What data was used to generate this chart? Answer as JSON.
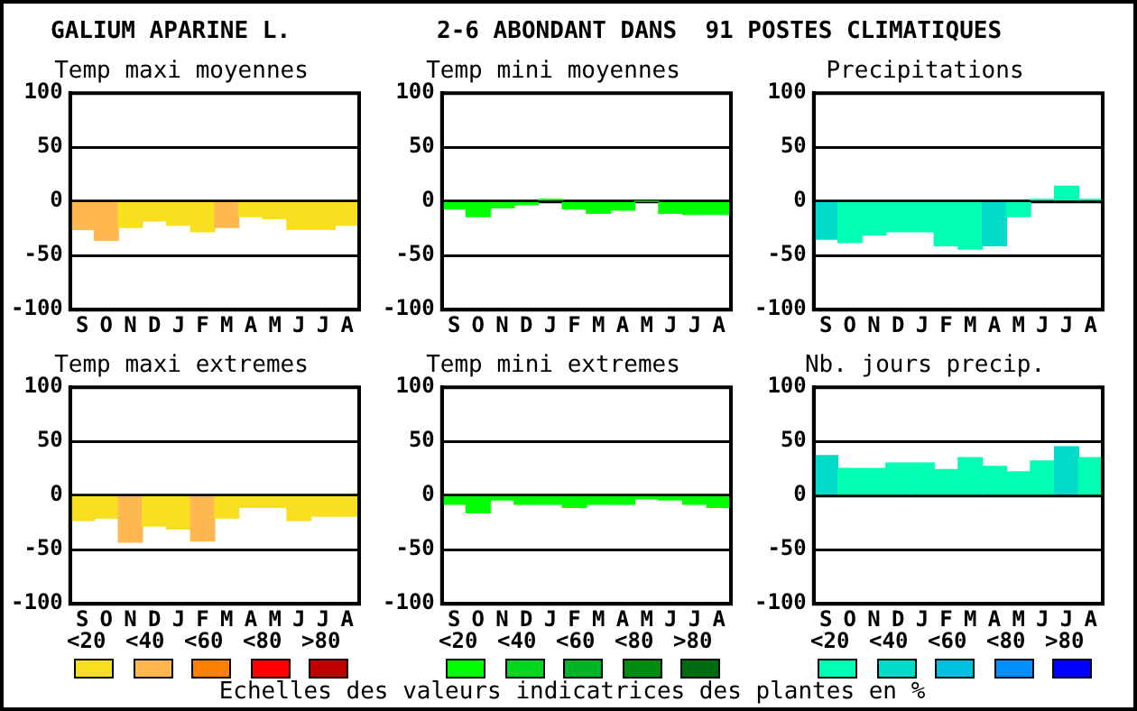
{
  "chart_data": [
    {
      "type": "other",
      "title": "GALIUM APARINE L.",
      "subtitle": "2-6 ABONDANT DANS  91 POSTES CLIMATIQUES"
    },
    {
      "type": "bar",
      "title": "Temp maxi moyennes",
      "categories": [
        "S",
        "O",
        "N",
        "D",
        "J",
        "F",
        "M",
        "A",
        "M",
        "J",
        "J",
        "A"
      ],
      "values": [
        -26,
        -36,
        -24,
        -18,
        -22,
        -28,
        -24,
        -14,
        -16,
        -26,
        -26,
        -22
      ],
      "colors": [
        "#ffb850",
        "#ffb850",
        "#f8e020",
        "#f8e020",
        "#f8e020",
        "#f8e020",
        "#ffb850",
        "#f8e020",
        "#f8e020",
        "#f8e020",
        "#f8e020",
        "#f8e020"
      ],
      "ylim": [
        -100,
        100
      ],
      "yticks": [
        -100,
        -50,
        0,
        50,
        100
      ],
      "grid": "y"
    },
    {
      "type": "bar",
      "title": "Temp mini moyennes",
      "categories": [
        "S",
        "O",
        "N",
        "D",
        "J",
        "F",
        "M",
        "A",
        "M",
        "J",
        "J",
        "A"
      ],
      "values": [
        -7,
        -14,
        -6,
        -3,
        2,
        -7,
        -11,
        -8,
        0,
        -11,
        -12,
        -12
      ],
      "colors": [
        "#00ff00",
        "#00ff00",
        "#00ff00",
        "#00ff00",
        "#00ff00",
        "#00ff00",
        "#00ff00",
        "#00ff00",
        "#00ff00",
        "#00ff00",
        "#00ff00",
        "#00ff00"
      ],
      "ylim": [
        -100,
        100
      ],
      "yticks": [
        -100,
        -50,
        0,
        50,
        100
      ],
      "grid": "y"
    },
    {
      "type": "bar",
      "title": "Precipitations",
      "categories": [
        "S",
        "O",
        "N",
        "D",
        "J",
        "F",
        "M",
        "A",
        "M",
        "J",
        "J",
        "A"
      ],
      "values": [
        -35,
        -38,
        -31,
        -28,
        -28,
        -41,
        -44,
        -41,
        -14,
        2,
        14,
        2
      ],
      "colors": [
        "#00dcc8",
        "#00ffb4",
        "#00ffb4",
        "#00ffb4",
        "#00ffb4",
        "#00ffb4",
        "#00ffb4",
        "#00dcc8",
        "#00ffb4",
        "#00ffb4",
        "#00ffb4",
        "#00ffb4"
      ],
      "ylim": [
        -100,
        100
      ],
      "yticks": [
        -100,
        -50,
        0,
        50,
        100
      ],
      "grid": "y"
    },
    {
      "type": "bar",
      "title": "Temp maxi extremes",
      "categories": [
        "S",
        "O",
        "N",
        "D",
        "J",
        "F",
        "M",
        "A",
        "M",
        "J",
        "J",
        "A"
      ],
      "values": [
        -23,
        -21,
        -43,
        -28,
        -31,
        -42,
        -21,
        -11,
        -11,
        -23,
        -19,
        -19
      ],
      "colors": [
        "#f8e020",
        "#f8e020",
        "#ffb850",
        "#f8e020",
        "#f8e020",
        "#ffb850",
        "#f8e020",
        "#f8e020",
        "#f8e020",
        "#f8e020",
        "#f8e020",
        "#f8e020"
      ],
      "ylim": [
        -100,
        100
      ],
      "yticks": [
        -100,
        -50,
        0,
        50,
        100
      ],
      "grid": "y"
    },
    {
      "type": "bar",
      "title": "Temp mini extremes",
      "categories": [
        "S",
        "O",
        "N",
        "D",
        "J",
        "F",
        "M",
        "A",
        "M",
        "J",
        "J",
        "A"
      ],
      "values": [
        -8,
        -16,
        -4,
        -8,
        -8,
        -11,
        -8,
        -8,
        -3,
        -4,
        -8,
        -11
      ],
      "colors": [
        "#00ff00",
        "#00ff00",
        "#00ff00",
        "#00ff00",
        "#00ff00",
        "#00ff00",
        "#00ff00",
        "#00ff00",
        "#00ff00",
        "#00ff00",
        "#00ff00",
        "#00ff00"
      ],
      "ylim": [
        -100,
        100
      ],
      "yticks": [
        -100,
        -50,
        0,
        50,
        100
      ],
      "grid": "y"
    },
    {
      "type": "bar",
      "title": "Nb. jours precip.",
      "categories": [
        "S",
        "O",
        "N",
        "D",
        "J",
        "F",
        "M",
        "A",
        "M",
        "J",
        "J",
        "A"
      ],
      "values": [
        37,
        25,
        25,
        30,
        30,
        24,
        35,
        27,
        22,
        32,
        45,
        35
      ],
      "colors": [
        "#00dcc8",
        "#00ffb4",
        "#00ffb4",
        "#00ffb4",
        "#00ffb4",
        "#00ffb4",
        "#00ffb4",
        "#00ffb4",
        "#00ffb4",
        "#00ffb4",
        "#00dcc8",
        "#00ffb4"
      ],
      "ylim": [
        -100,
        100
      ],
      "yticks": [
        -100,
        -50,
        0,
        50,
        100
      ],
      "grid": "y"
    },
    {
      "type": "other",
      "annotations": [
        "Echelles des valeurs indicatrices des plantes en %"
      ],
      "categories": [
        "<20",
        "<40",
        "<60",
        "<80",
        ">80",
        "<20",
        "<40",
        "<60",
        "<80",
        ">80",
        "<20",
        "<40",
        "<60",
        "<80",
        ">80"
      ],
      "colors": [
        "#f8e020",
        "#ffb850",
        "#ff8000",
        "#ff0000",
        "#c00000",
        "#00ff00",
        "#00d820",
        "#00b428",
        "#008c10",
        "#006c10",
        "#00ffb4",
        "#00dcc8",
        "#00c0e0",
        "#0090ff",
        "#0000ff"
      ]
    }
  ]
}
